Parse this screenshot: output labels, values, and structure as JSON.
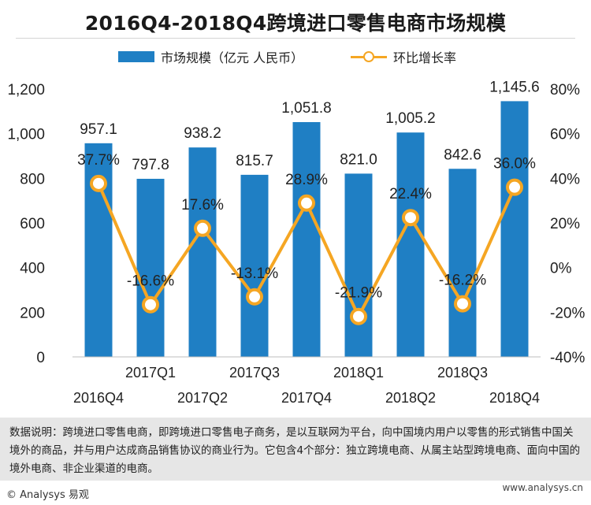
{
  "title": "2016Q4-2018Q4跨境进口零售电商市场规模",
  "legend": {
    "bar_label": "市场规模（亿元 人民币）",
    "line_label": "环比增长率"
  },
  "colors": {
    "bar": "#1f7fc4",
    "line": "#f5a623",
    "axis_text": "#222222"
  },
  "chart_data": {
    "type": "bar",
    "title": "2016Q4-2018Q4跨境进口零售电商市场规模",
    "categories": [
      "2016Q4",
      "2017Q1",
      "2017Q2",
      "2017Q3",
      "2017Q4",
      "2018Q1",
      "2018Q2",
      "2018Q3",
      "2018Q4"
    ],
    "series": [
      {
        "name": "市场规模（亿元 人民币）",
        "type": "bar",
        "axis": "left",
        "values": [
          957.1,
          797.8,
          938.2,
          815.7,
          1051.8,
          821.0,
          1005.2,
          842.6,
          1145.6
        ],
        "labels": [
          "957.1",
          "797.8",
          "938.2",
          "815.7",
          "1,051.8",
          "821.0",
          "1,005.2",
          "842.6",
          "1,145.6"
        ]
      },
      {
        "name": "环比增长率",
        "type": "line",
        "axis": "right",
        "values": [
          37.7,
          -16.6,
          17.6,
          -13.1,
          28.9,
          -21.9,
          22.4,
          -16.2,
          36.0
        ],
        "labels": [
          "37.7%",
          "-16.6%",
          "17.6%",
          "-13.1%",
          "28.9%",
          "-21.9%",
          "22.4%",
          "-16.2%",
          "36.0%"
        ]
      }
    ],
    "y_left": {
      "min": 0,
      "max": 1200,
      "ticks": [
        0,
        200,
        400,
        600,
        800,
        1000,
        1200
      ],
      "tick_labels": [
        "0",
        "200",
        "400",
        "600",
        "800",
        "1,000",
        "1,200"
      ]
    },
    "y_right": {
      "min": -40,
      "max": 80,
      "ticks": [
        -40,
        -20,
        0,
        20,
        40,
        60,
        80
      ],
      "tick_labels": [
        "-40%",
        "-20%",
        "0%",
        "20%",
        "40%",
        "60%",
        "80%"
      ]
    },
    "grid": false,
    "legend_position": "top"
  },
  "note": "数据说明：跨境进口零售电商，即跨境进口零售电子商务，是以互联网为平台，向中国境内用户以零售的形式销售中国关境外的商品，并与用户达成商品销售协议的商业行为。它包含4个部分：独立跨境电商、从属主站型跨境电商、面向中国的境外电商、非企业渠道的电商。",
  "footer": {
    "source": "© Analysys 易观",
    "watermark_site": "www.analysys.cn"
  }
}
